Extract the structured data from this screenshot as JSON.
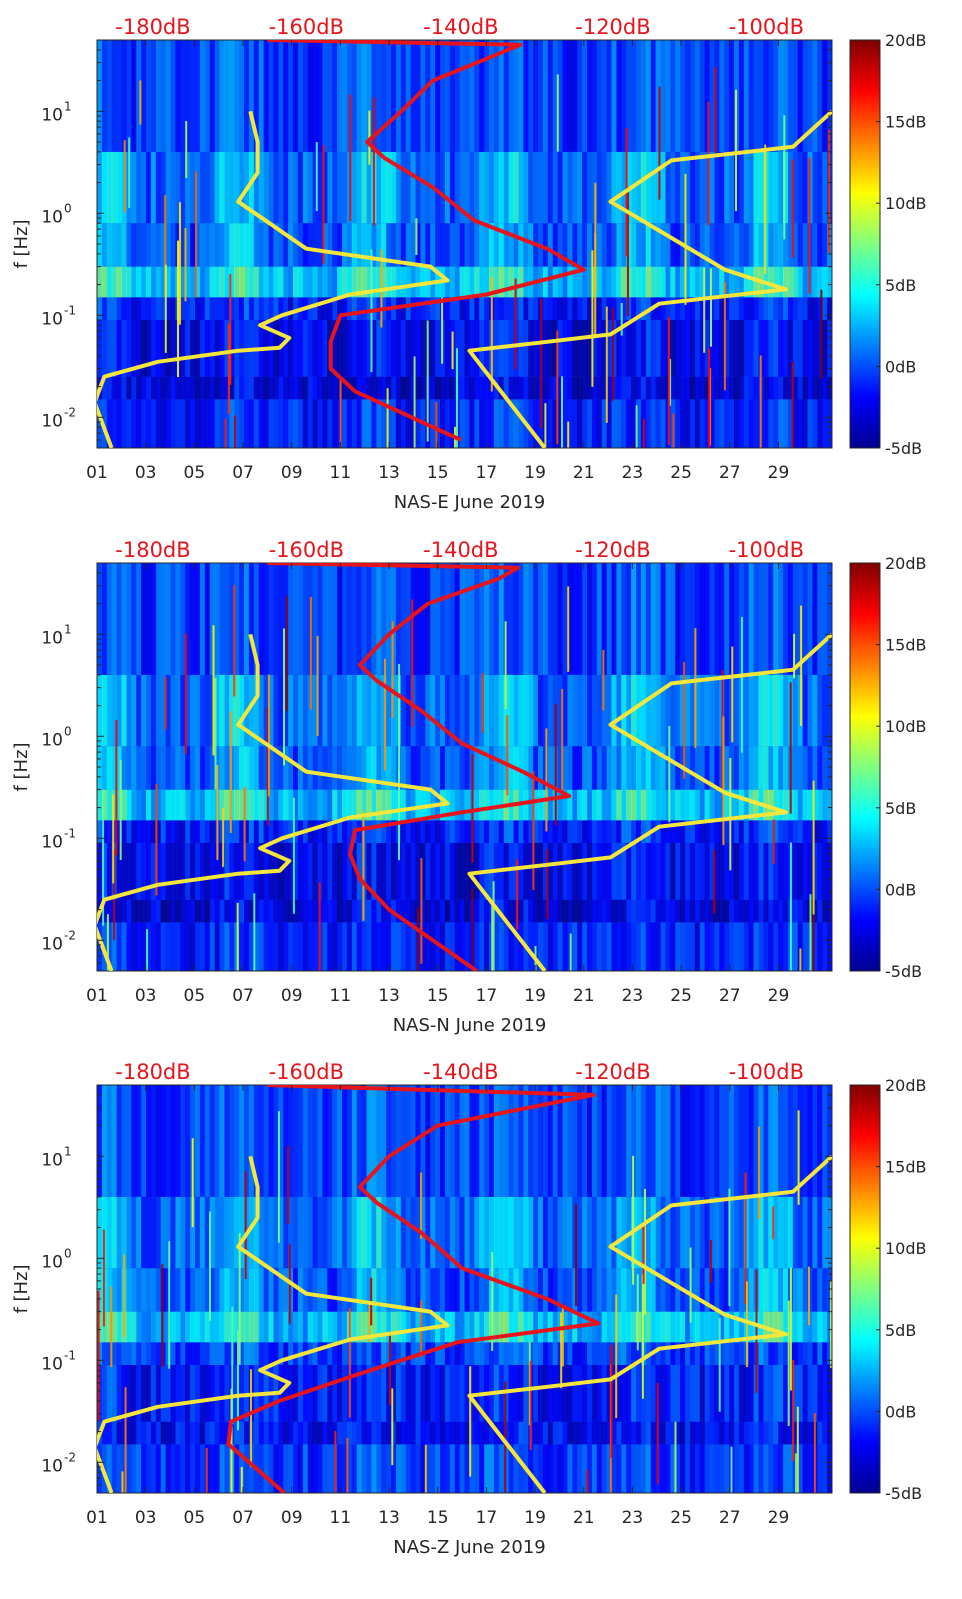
{
  "chart_data": [
    {
      "type": "heatmap",
      "xlabel": "NAS-E June 2019",
      "ylabel": "f [Hz]",
      "yscale": "log",
      "ylim": [
        0.005,
        50
      ],
      "xlim": [
        1,
        31.2
      ],
      "x_ticks": [
        1,
        3,
        5,
        7,
        9,
        11,
        13,
        15,
        17,
        19,
        21,
        23,
        25,
        27,
        29
      ],
      "x_tick_labels": [
        "01",
        "03",
        "05",
        "07",
        "09",
        "11",
        "13",
        "15",
        "17",
        "19",
        "21",
        "23",
        "25",
        "27",
        "29"
      ],
      "y_ticks": [
        0.01,
        0.1,
        1,
        10
      ],
      "y_tick_labels": [
        {
          "base": "10",
          "exp": "-2"
        },
        {
          "base": "10",
          "exp": "-1"
        },
        {
          "base": "10",
          "exp": "0"
        },
        {
          "base": "10",
          "exp": "1"
        }
      ],
      "top_axis": {
        "labels": [
          "-180dB",
          "-160dB",
          "-140dB",
          "-120dB",
          "-100dB"
        ],
        "day_positions": [
          3.3,
          9.6,
          15.95,
          22.2,
          28.5
        ],
        "color": "#e8141c"
      },
      "colorbar": {
        "min": -5,
        "max": 20,
        "ticks": [
          -5,
          0,
          5,
          10,
          15,
          20
        ],
        "labels": [
          "-5dB",
          "0dB",
          "5dB",
          "10dB",
          "15dB",
          "20dB"
        ],
        "colormap": "jet"
      },
      "microseism_band_hz": [
        0.15,
        0.3
      ],
      "series": [
        {
          "color": "#f5e63c",
          "points": [
            [
              1.6,
              0.005
            ],
            [
              0.9,
              0.014
            ],
            [
              1.3,
              0.025
            ],
            [
              3.5,
              0.035
            ],
            [
              6.8,
              0.045
            ],
            [
              8.5,
              0.048
            ],
            [
              8.9,
              0.06
            ],
            [
              7.7,
              0.08
            ],
            [
              8.6,
              0.1
            ],
            [
              11.4,
              0.16
            ],
            [
              15.4,
              0.22
            ],
            [
              14.7,
              0.3
            ],
            [
              9.6,
              0.45
            ],
            [
              6.8,
              1.3
            ],
            [
              7.6,
              2.5
            ],
            [
              7.6,
              5
            ],
            [
              7.3,
              10
            ]
          ]
        },
        {
          "color": "#f5e63c",
          "points": [
            [
              19.4,
              0.005
            ],
            [
              16.3,
              0.045
            ],
            [
              19.5,
              0.055
            ],
            [
              22.1,
              0.065
            ],
            [
              24.1,
              0.13
            ],
            [
              29.3,
              0.18
            ],
            [
              26.8,
              0.28
            ],
            [
              22.1,
              1.3
            ],
            [
              24.6,
              3.3
            ],
            [
              29.6,
              4.5
            ],
            [
              31.2,
              10
            ]
          ]
        },
        {
          "color": "#e8141c",
          "points": [
            [
              15.95,
              0.006
            ],
            [
              11.6,
              0.018
            ],
            [
              10.6,
              0.03
            ],
            [
              10.6,
              0.055
            ],
            [
              11.0,
              0.1
            ],
            [
              17.0,
              0.16
            ],
            [
              21.0,
              0.28
            ],
            [
              19.5,
              0.45
            ],
            [
              16.5,
              0.85
            ],
            [
              14.8,
              1.8
            ],
            [
              12.8,
              3.5
            ],
            [
              12.1,
              5
            ],
            [
              13.5,
              10
            ],
            [
              14.8,
              20
            ],
            [
              17.3,
              35
            ],
            [
              18.4,
              45
            ],
            [
              8.0,
              50
            ]
          ]
        }
      ]
    },
    {
      "type": "heatmap",
      "xlabel": "NAS-N June 2019",
      "ylabel": "f [Hz]",
      "yscale": "log",
      "ylim": [
        0.005,
        50
      ],
      "xlim": [
        1,
        31.2
      ],
      "x_ticks": [
        1,
        3,
        5,
        7,
        9,
        11,
        13,
        15,
        17,
        19,
        21,
        23,
        25,
        27,
        29
      ],
      "x_tick_labels": [
        "01",
        "03",
        "05",
        "07",
        "09",
        "11",
        "13",
        "15",
        "17",
        "19",
        "21",
        "23",
        "25",
        "27",
        "29"
      ],
      "y_ticks": [
        0.01,
        0.1,
        1,
        10
      ],
      "y_tick_labels": [
        {
          "base": "10",
          "exp": "-2"
        },
        {
          "base": "10",
          "exp": "-1"
        },
        {
          "base": "10",
          "exp": "0"
        },
        {
          "base": "10",
          "exp": "1"
        }
      ],
      "top_axis": {
        "labels": [
          "-180dB",
          "-160dB",
          "-140dB",
          "-120dB",
          "-100dB"
        ],
        "day_positions": [
          3.3,
          9.6,
          15.95,
          22.2,
          28.5
        ],
        "color": "#e8141c"
      },
      "colorbar": {
        "min": -5,
        "max": 20,
        "ticks": [
          -5,
          0,
          5,
          10,
          15,
          20
        ],
        "labels": [
          "-5dB",
          "0dB",
          "5dB",
          "10dB",
          "15dB",
          "20dB"
        ],
        "colormap": "jet"
      },
      "microseism_band_hz": [
        0.15,
        0.3
      ],
      "series": [
        {
          "color": "#f5e63c",
          "points": [
            [
              1.6,
              0.005
            ],
            [
              0.9,
              0.014
            ],
            [
              1.3,
              0.025
            ],
            [
              3.5,
              0.035
            ],
            [
              6.8,
              0.045
            ],
            [
              8.5,
              0.048
            ],
            [
              8.9,
              0.06
            ],
            [
              7.7,
              0.08
            ],
            [
              8.6,
              0.1
            ],
            [
              11.4,
              0.16
            ],
            [
              15.4,
              0.22
            ],
            [
              14.7,
              0.3
            ],
            [
              9.6,
              0.45
            ],
            [
              6.8,
              1.3
            ],
            [
              7.6,
              2.5
            ],
            [
              7.6,
              5
            ],
            [
              7.3,
              10
            ]
          ]
        },
        {
          "color": "#f5e63c",
          "points": [
            [
              19.4,
              0.005
            ],
            [
              16.3,
              0.045
            ],
            [
              19.5,
              0.055
            ],
            [
              22.1,
              0.065
            ],
            [
              24.1,
              0.13
            ],
            [
              29.3,
              0.18
            ],
            [
              26.8,
              0.28
            ],
            [
              22.1,
              1.3
            ],
            [
              24.6,
              3.3
            ],
            [
              29.6,
              4.5
            ],
            [
              31.2,
              10
            ]
          ]
        },
        {
          "color": "#e8141c",
          "points": [
            [
              16.6,
              0.005
            ],
            [
              13.0,
              0.02
            ],
            [
              11.8,
              0.04
            ],
            [
              11.4,
              0.07
            ],
            [
              11.6,
              0.12
            ],
            [
              16.0,
              0.18
            ],
            [
              20.4,
              0.26
            ],
            [
              18.5,
              0.45
            ],
            [
              16.0,
              0.85
            ],
            [
              14.3,
              1.8
            ],
            [
              12.5,
              3.5
            ],
            [
              11.8,
              5
            ],
            [
              13.0,
              10
            ],
            [
              14.6,
              20
            ],
            [
              17.5,
              35
            ],
            [
              18.3,
              45
            ],
            [
              8.0,
              50
            ]
          ]
        }
      ]
    },
    {
      "type": "heatmap",
      "xlabel": "NAS-Z June 2019",
      "ylabel": "f [Hz]",
      "yscale": "log",
      "ylim": [
        0.005,
        50
      ],
      "xlim": [
        1,
        31.2
      ],
      "x_ticks": [
        1,
        3,
        5,
        7,
        9,
        11,
        13,
        15,
        17,
        19,
        21,
        23,
        25,
        27,
        29
      ],
      "x_tick_labels": [
        "01",
        "03",
        "05",
        "07",
        "09",
        "11",
        "13",
        "15",
        "17",
        "19",
        "21",
        "23",
        "25",
        "27",
        "29"
      ],
      "y_ticks": [
        0.01,
        0.1,
        1,
        10
      ],
      "y_tick_labels": [
        {
          "base": "10",
          "exp": "-2"
        },
        {
          "base": "10",
          "exp": "-1"
        },
        {
          "base": "10",
          "exp": "0"
        },
        {
          "base": "10",
          "exp": "1"
        }
      ],
      "top_axis": {
        "labels": [
          "-180dB",
          "-160dB",
          "-140dB",
          "-120dB",
          "-100dB"
        ],
        "day_positions": [
          3.3,
          9.6,
          15.95,
          22.2,
          28.5
        ],
        "color": "#e8141c"
      },
      "colorbar": {
        "min": -5,
        "max": 20,
        "ticks": [
          -5,
          0,
          5,
          10,
          15,
          20
        ],
        "labels": [
          "-5dB",
          "0dB",
          "5dB",
          "10dB",
          "15dB",
          "20dB"
        ],
        "colormap": "jet"
      },
      "microseism_band_hz": [
        0.15,
        0.3
      ],
      "series": [
        {
          "color": "#f5e63c",
          "points": [
            [
              1.6,
              0.005
            ],
            [
              0.9,
              0.014
            ],
            [
              1.3,
              0.025
            ],
            [
              3.5,
              0.035
            ],
            [
              6.8,
              0.045
            ],
            [
              8.5,
              0.048
            ],
            [
              8.9,
              0.06
            ],
            [
              7.7,
              0.08
            ],
            [
              8.6,
              0.1
            ],
            [
              11.4,
              0.16
            ],
            [
              15.4,
              0.22
            ],
            [
              14.7,
              0.3
            ],
            [
              9.6,
              0.45
            ],
            [
              6.8,
              1.3
            ],
            [
              7.6,
              2.5
            ],
            [
              7.6,
              5
            ],
            [
              7.3,
              10
            ]
          ]
        },
        {
          "color": "#f5e63c",
          "points": [
            [
              19.4,
              0.005
            ],
            [
              16.3,
              0.045
            ],
            [
              19.5,
              0.055
            ],
            [
              22.1,
              0.065
            ],
            [
              24.1,
              0.13
            ],
            [
              29.3,
              0.18
            ],
            [
              26.8,
              0.28
            ],
            [
              22.1,
              1.3
            ],
            [
              24.6,
              3.3
            ],
            [
              29.6,
              4.5
            ],
            [
              31.2,
              10
            ]
          ]
        },
        {
          "color": "#e8141c",
          "points": [
            [
              8.7,
              0.005
            ],
            [
              6.4,
              0.015
            ],
            [
              6.5,
              0.025
            ],
            [
              8.5,
              0.04
            ],
            [
              11.5,
              0.07
            ],
            [
              15.8,
              0.15
            ],
            [
              21.6,
              0.23
            ],
            [
              19.5,
              0.4
            ],
            [
              16.0,
              0.8
            ],
            [
              14.3,
              1.8
            ],
            [
              12.5,
              3.5
            ],
            [
              11.8,
              5
            ],
            [
              13.0,
              10
            ],
            [
              15.0,
              20
            ],
            [
              21.4,
              40
            ],
            [
              8.0,
              50
            ]
          ]
        }
      ]
    }
  ]
}
